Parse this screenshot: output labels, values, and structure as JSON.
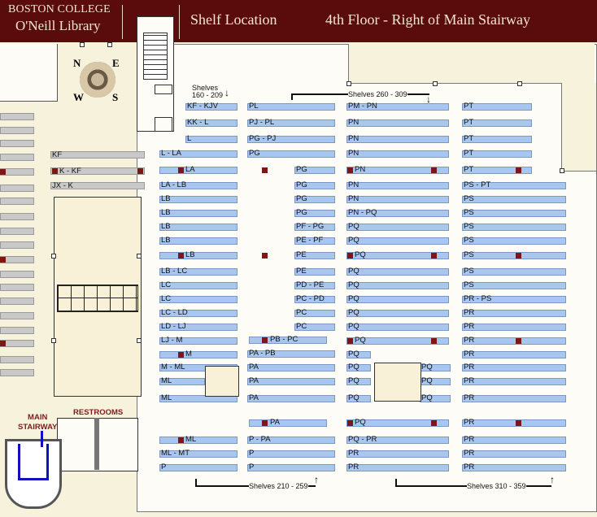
{
  "header": {
    "college": "BOSTON COLLEGE",
    "library": "O'Neill Library",
    "section": "Shelf Location",
    "location": "4th Floor - Right of Main Stairway"
  },
  "compass": {
    "n": "N",
    "e": "E",
    "s": "S",
    "w": "W"
  },
  "shelf_notes": {
    "s160": "Shelves\n160 - 209",
    "s260": "Shelves 260 - 309",
    "s210": "Shelves 210 - 259",
    "s310": "Shelves 310 - 359"
  },
  "places": {
    "stairway": "MAIN\nSTAIRWAY",
    "restrooms": "RESTROOMS"
  },
  "labels": {
    "c0": [
      "KF - KJV",
      "KK - L",
      "L"
    ],
    "left_k": [
      "KF",
      "K - KF",
      "JX - K"
    ],
    "c1": [
      "L - LA",
      "LA",
      "LA - LB",
      "LB",
      "LB",
      "LB",
      "LB",
      "LB",
      "LB - LC",
      "LC",
      "LC",
      "LC - LD",
      "LD - LJ",
      "LJ - M",
      "M",
      "M - ML",
      "ML",
      "ML",
      "ML",
      "ML - MT",
      "P"
    ],
    "c2": [
      "PL",
      "PJ - PL",
      "PG - PJ",
      "PG",
      "PA - PB",
      "PA",
      "PA",
      "PA",
      "PB - PC",
      "PA",
      "P - PA",
      "P",
      "P"
    ],
    "c2b": [
      "PG",
      "PG",
      "PG",
      "PG",
      "PF - PG",
      "PE - PF",
      "PE",
      "PE",
      "PD - PE",
      "PC - PD",
      "PC",
      "PC"
    ],
    "c3": [
      "PM - PN",
      "PN",
      "PN",
      "PN",
      "PN",
      "PN",
      "PN",
      "PN - PQ",
      "PQ",
      "PQ",
      "PQ",
      "PQ",
      "PQ",
      "PQ",
      "PQ",
      "PQ",
      "PQ",
      "PQ",
      "PQ",
      "PQ",
      "PQ",
      "PQ",
      "PQ - PR",
      "PR",
      "PR"
    ],
    "c3b": [
      "PQ",
      "PQ",
      "PQ"
    ],
    "c4": [
      "PT",
      "PT",
      "PT",
      "PT",
      "PT",
      "PS - PT",
      "PS",
      "PS",
      "PS",
      "PS",
      "PS",
      "PS",
      "PS",
      "PR - PS",
      "PR",
      "PR",
      "PR",
      "PR",
      "PR",
      "PR",
      "PR",
      "PR",
      "PR",
      "PR",
      "PR"
    ]
  }
}
